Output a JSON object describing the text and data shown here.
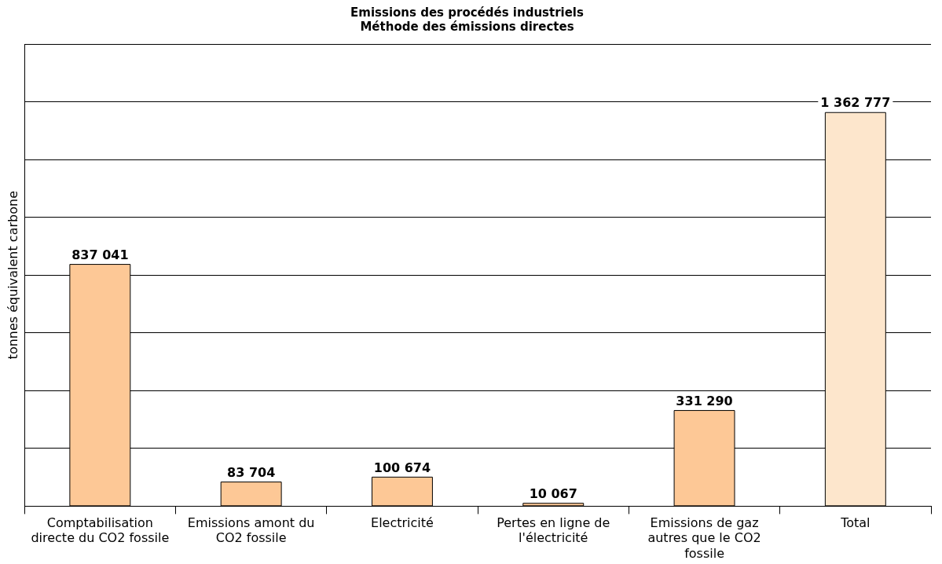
{
  "chart_data": {
    "type": "bar",
    "title": "Emissions des procédés industriels\nMéthode des émissions directes",
    "ylabel": "tonnes équivalent carbone",
    "categories": [
      "Comptabilisation directe du CO2 fossile",
      "Emissions amont du CO2 fossile",
      "Electricité",
      "Pertes en ligne de l'électricité",
      "Emissions de gaz autres que le CO2 fossile",
      "Total"
    ],
    "values": [
      837041,
      83704,
      100674,
      10067,
      331290,
      1362777
    ],
    "colors": [
      "#fdc896",
      "#fdc896",
      "#fdc896",
      "#fdc896",
      "#fdc896",
      "#fde6cc"
    ],
    "value_labels": [
      "837 041",
      "83 704",
      "100 674",
      "10 067",
      "331 290",
      "1 362 777"
    ],
    "grid": "y",
    "legend": false
  }
}
